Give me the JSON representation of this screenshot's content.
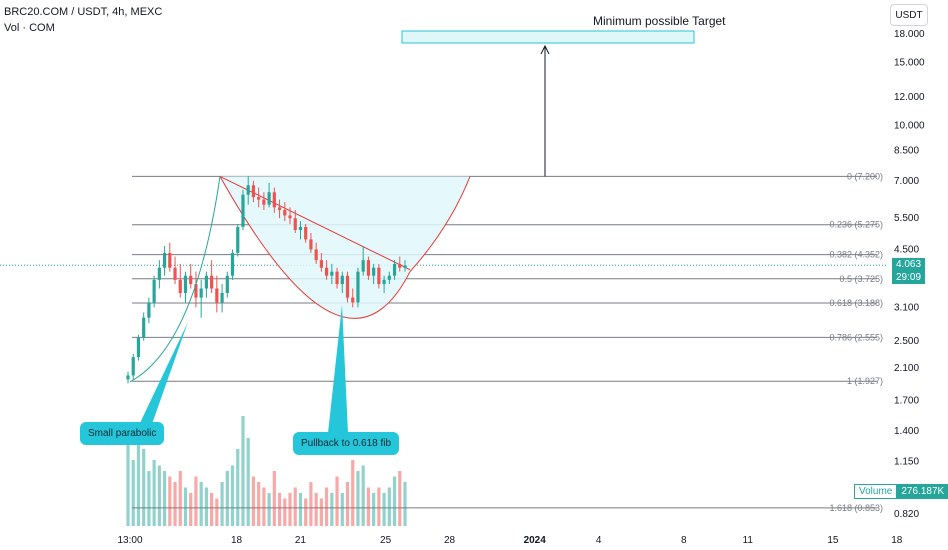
{
  "header": {
    "symbol": "BRC20.COM / USDT, 4h, MEXC",
    "volume_label": "Vol · COM"
  },
  "currency_button": "USDT",
  "price_axis_ticks": [
    {
      "label": "18.000",
      "v": 18.0
    },
    {
      "label": "15.000",
      "v": 15.0
    },
    {
      "label": "12.000",
      "v": 12.0
    },
    {
      "label": "10.000",
      "v": 10.0
    },
    {
      "label": "8.500",
      "v": 8.5
    },
    {
      "label": "7.000",
      "v": 7.0
    },
    {
      "label": "5.500",
      "v": 5.5
    },
    {
      "label": "4.500",
      "v": 4.5
    },
    {
      "label": "3.100",
      "v": 3.1
    },
    {
      "label": "2.500",
      "v": 2.5
    },
    {
      "label": "2.100",
      "v": 2.1
    },
    {
      "label": "1.700",
      "v": 1.7
    },
    {
      "label": "1.400",
      "v": 1.4
    },
    {
      "label": "1.150",
      "v": 1.15
    },
    {
      "label": "0.820",
      "v": 0.82
    }
  ],
  "time_axis_ticks": [
    {
      "label": "13:00",
      "d": 0
    },
    {
      "label": "18",
      "d": 5
    },
    {
      "label": "21",
      "d": 8
    },
    {
      "label": "25",
      "d": 12
    },
    {
      "label": "28",
      "d": 15
    },
    {
      "label": "2024",
      "d": 19
    },
    {
      "label": "4",
      "d": 22
    },
    {
      "label": "8",
      "d": 26
    },
    {
      "label": "11",
      "d": 29
    },
    {
      "label": "15",
      "d": 33
    },
    {
      "label": "18",
      "d": 36
    }
  ],
  "fib_levels": [
    {
      "label": "0 (7.200)",
      "v": 7.2
    },
    {
      "label": "0.236 (5.275)",
      "v": 5.275
    },
    {
      "label": "0.382 (4.352)",
      "v": 4.352
    },
    {
      "label": "0.5 (3.725)",
      "v": 3.725
    },
    {
      "label": "0.618 (3.188)",
      "v": 3.188
    },
    {
      "label": "0.786 (2.555)",
      "v": 2.555
    },
    {
      "label": "1 (1.927)",
      "v": 1.927
    },
    {
      "label": "1.618 (0.853)",
      "v": 0.853
    }
  ],
  "current_price": {
    "value": "4.063",
    "countdown": "29:09",
    "color": "#26a69a"
  },
  "volume_tag": {
    "label": "Volume",
    "value": "276.187K",
    "color": "#26a69a"
  },
  "annotations": {
    "target_label": "Minimum possible Target",
    "callout_parabolic": "Small parabolic",
    "callout_pullback": "Pullback to 0.618 fib"
  },
  "colors": {
    "up": "#26a69a",
    "down": "#ef5350",
    "cup": "#e0f7fa",
    "callout": "#26c6da"
  },
  "chart_data": {
    "type": "candlestick",
    "title": "BRC20.COM / USDT, 4h, MEXC",
    "ylim": [
      0.8,
      20
    ],
    "scale": "log",
    "candles": [
      [
        1.95,
        2.05,
        1.9,
        2.0
      ],
      [
        2.0,
        2.3,
        1.95,
        2.25
      ],
      [
        2.25,
        2.6,
        2.2,
        2.55
      ],
      [
        2.55,
        3.0,
        2.5,
        2.9
      ],
      [
        2.9,
        3.3,
        2.8,
        3.2
      ],
      [
        3.2,
        3.8,
        3.1,
        3.7
      ],
      [
        3.7,
        4.2,
        3.5,
        4.0
      ],
      [
        4.0,
        4.6,
        3.8,
        4.4
      ],
      [
        4.4,
        4.7,
        3.9,
        4.0
      ],
      [
        4.0,
        4.3,
        3.6,
        3.7
      ],
      [
        3.7,
        4.1,
        3.3,
        3.4
      ],
      [
        3.4,
        3.9,
        3.2,
        3.8
      ],
      [
        3.8,
        4.1,
        3.5,
        3.6
      ],
      [
        3.6,
        3.9,
        3.1,
        3.3
      ],
      [
        3.3,
        3.7,
        2.9,
        3.5
      ],
      [
        3.5,
        3.9,
        3.3,
        3.8
      ],
      [
        3.8,
        4.2,
        3.4,
        3.5
      ],
      [
        3.5,
        3.8,
        3.0,
        3.2
      ],
      [
        3.2,
        3.6,
        3.0,
        3.4
      ],
      [
        3.4,
        3.9,
        3.3,
        3.8
      ],
      [
        3.8,
        4.5,
        3.7,
        4.4
      ],
      [
        4.4,
        5.3,
        4.3,
        5.2
      ],
      [
        5.2,
        6.6,
        5.1,
        6.4
      ],
      [
        6.4,
        7.2,
        6.0,
        6.8
      ],
      [
        6.8,
        7.0,
        6.1,
        6.3
      ],
      [
        6.3,
        6.7,
        5.9,
        6.2
      ],
      [
        6.2,
        6.5,
        5.8,
        6.0
      ],
      [
        6.0,
        6.9,
        5.9,
        6.5
      ],
      [
        6.5,
        6.7,
        5.7,
        5.9
      ],
      [
        5.9,
        6.2,
        5.5,
        5.8
      ],
      [
        5.8,
        6.1,
        5.4,
        5.6
      ],
      [
        5.6,
        5.9,
        5.3,
        5.5
      ],
      [
        5.5,
        5.8,
        5.0,
        5.1
      ],
      [
        5.1,
        5.4,
        4.8,
        5.2
      ],
      [
        5.2,
        5.3,
        4.7,
        4.8
      ],
      [
        4.8,
        5.0,
        4.4,
        4.5
      ],
      [
        4.5,
        4.7,
        4.1,
        4.2
      ],
      [
        4.2,
        4.4,
        3.9,
        4.0
      ],
      [
        4.0,
        4.2,
        3.7,
        3.8
      ],
      [
        3.8,
        4.1,
        3.6,
        3.9
      ],
      [
        3.9,
        4.0,
        3.5,
        3.6
      ],
      [
        3.6,
        3.9,
        3.4,
        3.8
      ],
      [
        3.8,
        3.9,
        3.2,
        3.3
      ],
      [
        3.3,
        3.5,
        3.1,
        3.2
      ],
      [
        3.2,
        4.0,
        3.1,
        3.9
      ],
      [
        3.9,
        4.6,
        3.8,
        4.2
      ],
      [
        4.2,
        4.3,
        3.7,
        3.8
      ],
      [
        3.8,
        4.1,
        3.6,
        4.0
      ],
      [
        4.0,
        4.1,
        3.5,
        3.6
      ],
      [
        3.6,
        3.8,
        3.4,
        3.7
      ],
      [
        3.7,
        3.9,
        3.6,
        3.8
      ],
      [
        3.8,
        4.2,
        3.7,
        4.1
      ],
      [
        4.1,
        4.3,
        3.9,
        4.0
      ],
      [
        4.0,
        4.2,
        3.9,
        4.06
      ]
    ],
    "volume": [
      0.9,
      0.6,
      0.8,
      0.7,
      0.5,
      0.6,
      0.55,
      0.5,
      0.45,
      0.4,
      0.5,
      0.35,
      0.3,
      0.45,
      0.4,
      0.35,
      0.3,
      0.25,
      0.4,
      0.5,
      0.55,
      0.7,
      1.0,
      0.8,
      0.45,
      0.4,
      0.35,
      0.3,
      0.5,
      0.3,
      0.25,
      0.3,
      0.35,
      0.3,
      0.25,
      0.4,
      0.3,
      0.25,
      0.35,
      0.3,
      0.45,
      0.3,
      0.4,
      0.6,
      0.5,
      0.55,
      0.35,
      0.3,
      0.35,
      0.3,
      0.35,
      0.45,
      0.5,
      0.4
    ]
  }
}
